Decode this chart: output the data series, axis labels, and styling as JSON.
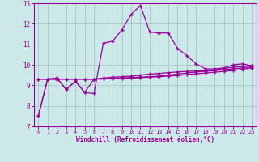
{
  "xlabel": "Windchill (Refroidissement éolien,°C)",
  "background_color": "#cde8e8",
  "line_color": "#990099",
  "grid_color": "#aacccc",
  "ylim": [
    7,
    13
  ],
  "xlim": [
    -0.5,
    23.5
  ],
  "yticks": [
    7,
    8,
    9,
    10,
    11,
    12,
    13
  ],
  "xticks": [
    0,
    1,
    2,
    3,
    4,
    5,
    6,
    7,
    8,
    9,
    10,
    11,
    12,
    13,
    14,
    15,
    16,
    17,
    18,
    19,
    20,
    21,
    22,
    23
  ],
  "series": [
    [
      7.5,
      9.3,
      9.35,
      8.8,
      9.2,
      8.65,
      8.6,
      11.05,
      11.15,
      11.7,
      12.45,
      12.9,
      11.6,
      11.55,
      11.55,
      10.8,
      10.45,
      10.05,
      9.8,
      9.8,
      9.85,
      10.0,
      10.05,
      9.95
    ],
    [
      7.5,
      9.3,
      9.35,
      8.8,
      9.2,
      8.65,
      9.3,
      9.35,
      9.4,
      9.42,
      9.45,
      9.5,
      9.55,
      9.58,
      9.62,
      9.65,
      9.68,
      9.7,
      9.72,
      9.75,
      9.82,
      9.88,
      9.92,
      9.95
    ],
    [
      9.3,
      9.3,
      9.3,
      9.3,
      9.3,
      9.3,
      9.3,
      9.32,
      9.34,
      9.36,
      9.38,
      9.4,
      9.42,
      9.45,
      9.5,
      9.55,
      9.6,
      9.65,
      9.68,
      9.72,
      9.76,
      9.8,
      9.85,
      9.9
    ],
    [
      9.3,
      9.3,
      9.3,
      9.3,
      9.3,
      9.3,
      9.3,
      9.31,
      9.32,
      9.33,
      9.35,
      9.37,
      9.4,
      9.42,
      9.45,
      9.48,
      9.52,
      9.56,
      9.6,
      9.64,
      9.68,
      9.72,
      9.78,
      9.85
    ]
  ]
}
